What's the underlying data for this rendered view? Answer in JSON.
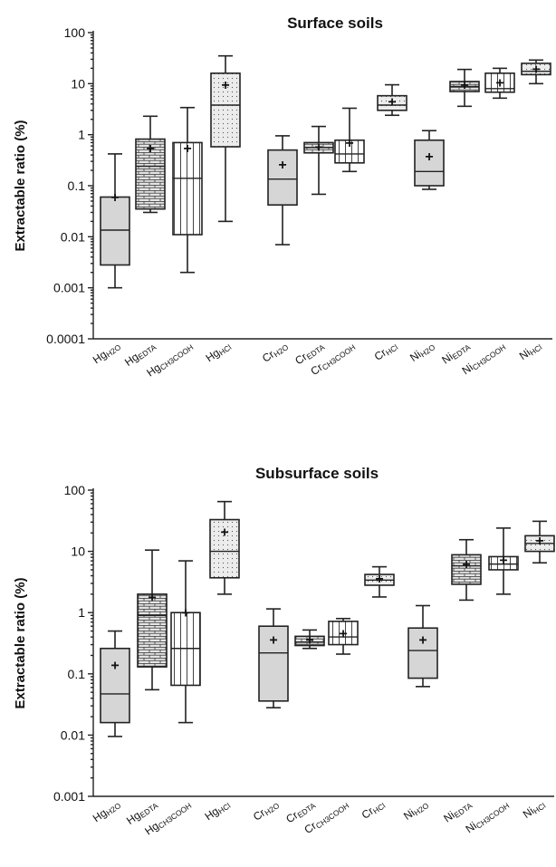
{
  "chart_data": [
    {
      "type": "box",
      "title": "Surface soils",
      "ylabel": "Extractable ratio (%)",
      "yscale": "log",
      "ylim": [
        0.0001,
        100
      ],
      "yticks": [
        "0.0001",
        "0.001",
        "0.01",
        "0.1",
        "1",
        "10",
        "100"
      ],
      "categories": [
        {
          "base": "Hg",
          "sub": "H2O"
        },
        {
          "base": "Hg",
          "sub": "EDTA"
        },
        {
          "base": "Hg",
          "sub": "CH3COOH"
        },
        {
          "base": "Hg",
          "sub": "HCl"
        },
        {
          "base": "Cr",
          "sub": "H2O"
        },
        {
          "base": "Cr",
          "sub": "EDTA"
        },
        {
          "base": "Cr",
          "sub": "CH3COOH"
        },
        {
          "base": "Cr",
          "sub": "HCl"
        },
        {
          "base": "Ni",
          "sub": "H2O"
        },
        {
          "base": "Ni",
          "sub": "EDTA"
        },
        {
          "base": "Ni",
          "sub": "CH3COOH"
        },
        {
          "base": "Ni",
          "sub": "HCl"
        }
      ],
      "boxes": [
        {
          "min": 0.001,
          "q1": 0.0028,
          "median": 0.0135,
          "q3": 0.06,
          "max": 0.42,
          "mean": 0.06,
          "pattern": "plain"
        },
        {
          "min": 0.03,
          "q1": 0.035,
          "median": 0.24,
          "q3": 0.82,
          "max": 2.3,
          "mean": 0.55,
          "pattern": "brick"
        },
        {
          "min": 0.002,
          "q1": 0.011,
          "median": 0.14,
          "q3": 0.7,
          "max": 3.4,
          "mean": 0.55,
          "pattern": "vertical"
        },
        {
          "min": 0.02,
          "q1": 0.58,
          "median": 3.8,
          "q3": 16,
          "max": 35,
          "mean": 9.5,
          "pattern": "dots"
        },
        {
          "min": 0.007,
          "q1": 0.042,
          "median": 0.135,
          "q3": 0.5,
          "max": 0.95,
          "mean": 0.26,
          "pattern": "plain"
        },
        {
          "min": 0.068,
          "q1": 0.44,
          "median": 0.56,
          "q3": 0.7,
          "max": 1.45,
          "mean": 0.58,
          "pattern": "brick"
        },
        {
          "min": 0.19,
          "q1": 0.28,
          "median": 0.42,
          "q3": 0.78,
          "max": 3.3,
          "mean": 0.7,
          "pattern": "vertical"
        },
        {
          "min": 2.4,
          "q1": 3.0,
          "median": 3.8,
          "q3": 5.8,
          "max": 9.5,
          "mean": 4.5,
          "pattern": "dots"
        },
        {
          "min": 0.085,
          "q1": 0.1,
          "median": 0.19,
          "q3": 0.78,
          "max": 1.2,
          "mean": 0.38,
          "pattern": "plain"
        },
        {
          "min": 3.6,
          "q1": 7.0,
          "median": 8.8,
          "q3": 11,
          "max": 19,
          "mean": 9.5,
          "pattern": "brick"
        },
        {
          "min": 5.2,
          "q1": 6.8,
          "median": 8.0,
          "q3": 16,
          "max": 20,
          "mean": 10.5,
          "pattern": "vertical"
        },
        {
          "min": 10,
          "q1": 15,
          "median": 17.5,
          "q3": 25,
          "max": 29,
          "mean": 19.5,
          "pattern": "dots"
        }
      ]
    },
    {
      "type": "box",
      "title": "Subsurface soils",
      "ylabel": "Extractable ratio (%)",
      "yscale": "log",
      "ylim": [
        0.001,
        100
      ],
      "yticks": [
        "0.001",
        "0.01",
        "0.1",
        "1",
        "10",
        "100"
      ],
      "categories": [
        {
          "base": "Hg",
          "sub": "H2O"
        },
        {
          "base": "Hg",
          "sub": "EDTA"
        },
        {
          "base": "Hg",
          "sub": "CH3COOH"
        },
        {
          "base": "Hg",
          "sub": "HCl"
        },
        {
          "base": "Cr",
          "sub": "H2O"
        },
        {
          "base": "Cr",
          "sub": "EDTA"
        },
        {
          "base": "Cr",
          "sub": "CH3COOH"
        },
        {
          "base": "Cr",
          "sub": "HCl"
        },
        {
          "base": "Ni",
          "sub": "H2O"
        },
        {
          "base": "Ni",
          "sub": "EDTA"
        },
        {
          "base": "Ni",
          "sub": "CH3COOH"
        },
        {
          "base": "Ni",
          "sub": "HCl"
        }
      ],
      "boxes": [
        {
          "min": 0.0095,
          "q1": 0.016,
          "median": 0.047,
          "q3": 0.26,
          "max": 0.5,
          "mean": 0.14,
          "pattern": "plain"
        },
        {
          "min": 0.055,
          "q1": 0.13,
          "median": 0.9,
          "q3": 2.0,
          "max": 10.5,
          "mean": 1.8,
          "pattern": "brick"
        },
        {
          "min": 0.016,
          "q1": 0.065,
          "median": 0.26,
          "q3": 1.0,
          "max": 7.0,
          "mean": 1.0,
          "pattern": "vertical"
        },
        {
          "min": 2.0,
          "q1": 3.7,
          "median": 10,
          "q3": 33,
          "max": 65,
          "mean": 21,
          "pattern": "dots"
        },
        {
          "min": 0.028,
          "q1": 0.036,
          "median": 0.22,
          "q3": 0.6,
          "max": 1.15,
          "mean": 0.36,
          "pattern": "plain"
        },
        {
          "min": 0.26,
          "q1": 0.29,
          "median": 0.33,
          "q3": 0.41,
          "max": 0.52,
          "mean": 0.36,
          "pattern": "brick"
        },
        {
          "min": 0.21,
          "q1": 0.3,
          "median": 0.4,
          "q3": 0.72,
          "max": 0.8,
          "mean": 0.46,
          "pattern": "vertical"
        },
        {
          "min": 1.8,
          "q1": 2.8,
          "median": 3.4,
          "q3": 4.2,
          "max": 5.6,
          "mean": 3.6,
          "pattern": "dots"
        },
        {
          "min": 0.062,
          "q1": 0.085,
          "median": 0.24,
          "q3": 0.56,
          "max": 1.3,
          "mean": 0.36,
          "pattern": "plain"
        },
        {
          "min": 1.6,
          "q1": 2.9,
          "median": 5.8,
          "q3": 8.8,
          "max": 15.5,
          "mean": 6.2,
          "pattern": "brick"
        },
        {
          "min": 2.0,
          "q1": 5.0,
          "median": 6.2,
          "q3": 8.2,
          "max": 24,
          "mean": 7.2,
          "pattern": "vertical"
        },
        {
          "min": 6.5,
          "q1": 10,
          "median": 13.5,
          "q3": 18,
          "max": 31,
          "mean": 15,
          "pattern": "dots"
        }
      ]
    }
  ]
}
